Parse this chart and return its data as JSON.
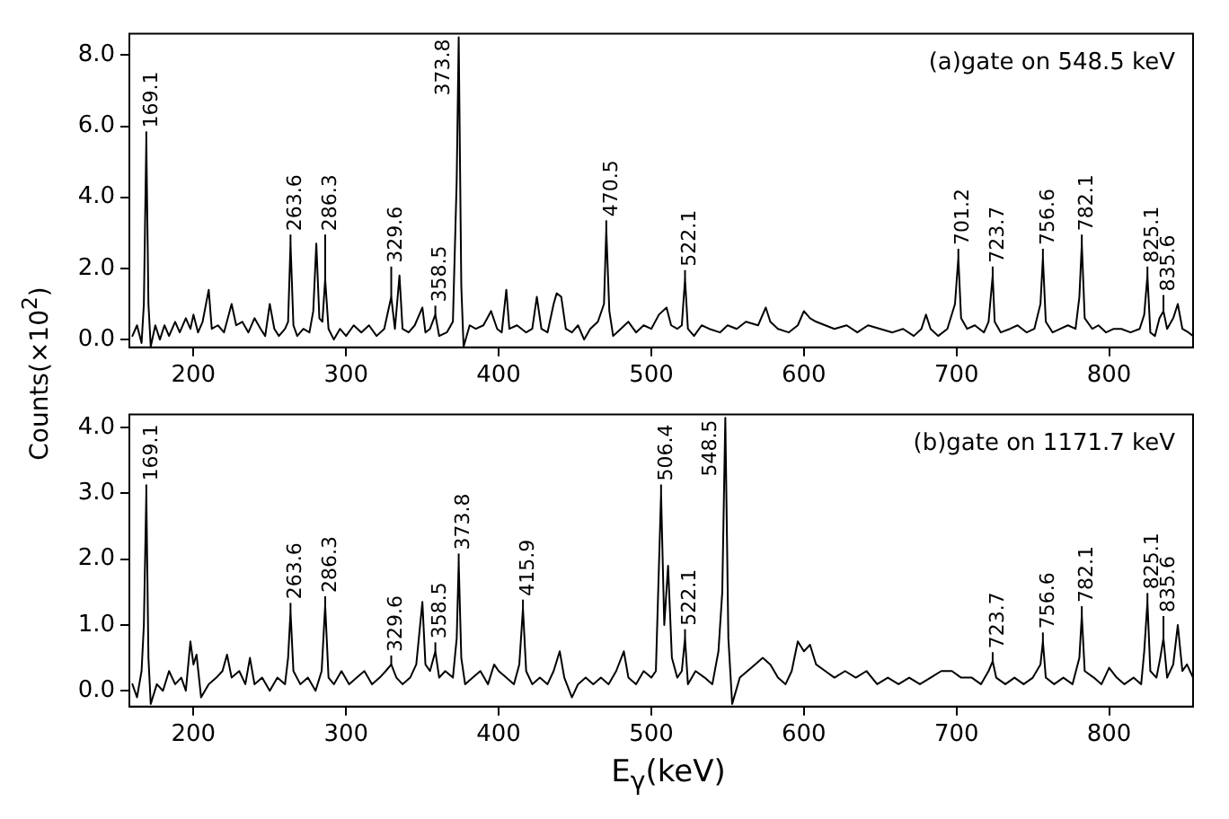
{
  "chart_data": [
    {
      "type": "line",
      "ylabel": "Counts(×10$^{2}$)",
      "xlim": [
        158,
        855
      ],
      "xticks": [
        200,
        300,
        400,
        500,
        600,
        700,
        800
      ],
      "ylim": [
        -0.22,
        8.6
      ],
      "yticks": [
        {
          "value": 0,
          "label": "0.0"
        },
        {
          "value": 2,
          "label": "2.0"
        },
        {
          "value": 4,
          "label": "4.0"
        },
        {
          "value": 6,
          "label": "6.0"
        },
        {
          "value": 8,
          "label": "8.0"
        }
      ],
      "series": [
        {
          "color": "#000000",
          "x": [
            160,
            163,
            166,
            167.5,
            169.1,
            170.5,
            172,
            175,
            178,
            181,
            184,
            188,
            191,
            195,
            198,
            200,
            203,
            206,
            210,
            212,
            216,
            220,
            225,
            228,
            232,
            236,
            240,
            244,
            247,
            250,
            253,
            256,
            260,
            262,
            263.6,
            265.5,
            268,
            272,
            276,
            278.5,
            280.5,
            282.5,
            284.5,
            286.3,
            288.5,
            292,
            296,
            300,
            305,
            310,
            315,
            320,
            325,
            329.6,
            332,
            335,
            337,
            341,
            345,
            350,
            352,
            355,
            358.5,
            361,
            366,
            370,
            372.5,
            373.8,
            375.5,
            377,
            381,
            385,
            390,
            395,
            399,
            402,
            405,
            407,
            412,
            418,
            422,
            425,
            428,
            432,
            436,
            438,
            441,
            444,
            448,
            452,
            456,
            460,
            465,
            469,
            470.5,
            472.5,
            475,
            480,
            485,
            490,
            495,
            500,
            505,
            510,
            513,
            517,
            520,
            522.1,
            524,
            528,
            533,
            538,
            545,
            550,
            556,
            562,
            570,
            575,
            578,
            583,
            590,
            596,
            600,
            604,
            608,
            614,
            620,
            628,
            635,
            642,
            650,
            658,
            665,
            672,
            677,
            680,
            683,
            688,
            694,
            699,
            701.2,
            703,
            707,
            712,
            718,
            721,
            723.7,
            725,
            729,
            735,
            740,
            746,
            751,
            755,
            756.6,
            758.5,
            763,
            768,
            773,
            778,
            780.5,
            782.1,
            784,
            789,
            793,
            798,
            803,
            808,
            814,
            820,
            823,
            825.1,
            827,
            830,
            833,
            835.6,
            838,
            842,
            845,
            848,
            852,
            855
          ],
          "values": [
            0.1,
            0.4,
            -0.1,
            1.0,
            5.6,
            1.0,
            -0.2,
            0.4,
            0.0,
            0.4,
            0.1,
            0.5,
            0.2,
            0.6,
            0.3,
            0.7,
            0.2,
            0.5,
            1.4,
            0.3,
            0.4,
            0.2,
            1.0,
            0.4,
            0.5,
            0.2,
            0.6,
            0.3,
            0.1,
            1.0,
            0.3,
            0.1,
            0.3,
            0.5,
            2.7,
            0.4,
            0.1,
            0.3,
            0.2,
            0.8,
            2.7,
            0.6,
            0.5,
            1.7,
            0.3,
            0.0,
            0.3,
            0.1,
            0.4,
            0.2,
            0.4,
            0.1,
            0.3,
            1.2,
            0.3,
            1.8,
            0.3,
            0.2,
            0.4,
            0.9,
            0.2,
            0.3,
            0.7,
            0.1,
            0.2,
            0.5,
            4.5,
            8.5,
            1.5,
            -0.2,
            0.4,
            0.3,
            0.4,
            0.8,
            0.3,
            0.2,
            1.4,
            0.3,
            0.4,
            0.2,
            0.3,
            1.2,
            0.3,
            0.2,
            1.0,
            1.3,
            1.2,
            0.3,
            0.2,
            0.4,
            0.0,
            0.3,
            0.5,
            1.0,
            3.1,
            0.8,
            0.1,
            0.3,
            0.5,
            0.2,
            0.4,
            0.3,
            0.7,
            0.9,
            0.4,
            0.3,
            0.4,
            1.7,
            0.3,
            0.1,
            0.4,
            0.3,
            0.2,
            0.4,
            0.3,
            0.5,
            0.4,
            0.9,
            0.5,
            0.3,
            0.2,
            0.4,
            0.8,
            0.6,
            0.5,
            0.4,
            0.3,
            0.4,
            0.2,
            0.4,
            0.3,
            0.2,
            0.3,
            0.1,
            0.3,
            0.7,
            0.3,
            0.1,
            0.3,
            1.0,
            2.3,
            0.6,
            0.3,
            0.4,
            0.2,
            0.5,
            1.8,
            0.5,
            0.2,
            0.3,
            0.4,
            0.2,
            0.3,
            1.0,
            2.3,
            0.5,
            0.2,
            0.3,
            0.4,
            0.3,
            1.2,
            2.7,
            0.6,
            0.3,
            0.4,
            0.2,
            0.3,
            0.3,
            0.2,
            0.3,
            0.7,
            1.8,
            0.2,
            0.1,
            0.6,
            0.8,
            0.3,
            0.6,
            1.0,
            0.3,
            0.2,
            0.1
          ]
        }
      ],
      "annotations": [
        "(a)gate on 548.5 keV",
        {
          "text": "169.1",
          "x": 169.1,
          "y": 5.6
        },
        {
          "text": "263.6",
          "x": 263.6,
          "y": 2.7
        },
        {
          "text": "286.3",
          "x": 286.3,
          "y": 1.7
        },
        {
          "text": "329.6",
          "x": 329.6,
          "y": 1.2
        },
        {
          "text": "358.5",
          "x": 358.5,
          "y": 0.7
        },
        {
          "text": "373.8",
          "x": 373.8,
          "y": 8.5
        },
        {
          "text": "470.5",
          "x": 470.5,
          "y": 3.1
        },
        {
          "text": "522.1",
          "x": 522.1,
          "y": 1.7
        },
        {
          "text": "701.2",
          "x": 701.2,
          "y": 2.3
        },
        {
          "text": "723.7",
          "x": 723.7,
          "y": 1.8
        },
        {
          "text": "756.6",
          "x": 756.6,
          "y": 2.3
        },
        {
          "text": "782.1",
          "x": 782.1,
          "y": 2.7
        },
        {
          "text": "825.1",
          "x": 825.1,
          "y": 1.8
        },
        {
          "text": "835.6",
          "x": 835.6,
          "y": 0.8
        }
      ]
    },
    {
      "type": "line",
      "xlabel": "E$_{γ}$(keV)",
      "xlim": [
        158,
        855
      ],
      "xticks": [
        200,
        300,
        400,
        500,
        600,
        700,
        800
      ],
      "ylim": [
        -0.24,
        4.2
      ],
      "yticks": [
        {
          "value": 0,
          "label": "0.0"
        },
        {
          "value": 1,
          "label": "1.0"
        },
        {
          "value": 2,
          "label": "2.0"
        },
        {
          "value": 3,
          "label": "3.0"
        },
        {
          "value": 4,
          "label": "4.0"
        }
      ],
      "series": [
        {
          "color": "#000000",
          "x": [
            160,
            163,
            166,
            167.5,
            169.1,
            170.5,
            172,
            176,
            180,
            184,
            188,
            192,
            195,
            198,
            200,
            202,
            205,
            210,
            215,
            219,
            222,
            225,
            230,
            234,
            237,
            240,
            245,
            250,
            255,
            260,
            262,
            263.6,
            265.5,
            270,
            275,
            280,
            284,
            286.3,
            288.5,
            292,
            297,
            302,
            307,
            312,
            317,
            322,
            326,
            329.6,
            333,
            337,
            342,
            346,
            350,
            352,
            355,
            358.5,
            361,
            365,
            370,
            372.5,
            373.8,
            375.5,
            378,
            383,
            388,
            393,
            397,
            400,
            405,
            410,
            413.5,
            415.9,
            418,
            422,
            427,
            432,
            436,
            440,
            443,
            448,
            452,
            457,
            462,
            467,
            472,
            477,
            482,
            485,
            490,
            495,
            500,
            503,
            506.4,
            508.5,
            511,
            513.5,
            517,
            520,
            522.1,
            524,
            529,
            535,
            540,
            544,
            546.5,
            548.5,
            550.5,
            553,
            558,
            563,
            568,
            573,
            578,
            583,
            588,
            592,
            596,
            600,
            604,
            608,
            614,
            620,
            627,
            634,
            641,
            648,
            655,
            662,
            669,
            676,
            683,
            690,
            697,
            703,
            710,
            716,
            721,
            723.7,
            726,
            732,
            738,
            744,
            750,
            755,
            756.6,
            758.5,
            764,
            770,
            776,
            780.5,
            782.1,
            784,
            790,
            795,
            800,
            805,
            810,
            816,
            821,
            823,
            825.1,
            827,
            831,
            833.5,
            835.6,
            838,
            842,
            845,
            848,
            851,
            855
          ],
          "values": [
            0.1,
            -0.1,
            0.3,
            1.0,
            3.0,
            0.5,
            -0.2,
            0.1,
            0.0,
            0.3,
            0.1,
            0.2,
            0.0,
            0.75,
            0.4,
            0.55,
            -0.1,
            0.1,
            0.2,
            0.3,
            0.55,
            0.2,
            0.3,
            0.1,
            0.5,
            0.1,
            0.2,
            0.0,
            0.2,
            0.1,
            0.5,
            1.2,
            0.3,
            0.1,
            0.2,
            0.0,
            0.3,
            1.3,
            0.2,
            0.1,
            0.3,
            0.1,
            0.2,
            0.3,
            0.1,
            0.2,
            0.3,
            0.4,
            0.2,
            0.1,
            0.2,
            0.4,
            1.35,
            0.4,
            0.3,
            0.6,
            0.2,
            0.3,
            0.2,
            0.8,
            1.95,
            0.5,
            0.1,
            0.2,
            0.3,
            0.1,
            0.4,
            0.3,
            0.2,
            0.1,
            0.4,
            1.25,
            0.3,
            0.1,
            0.2,
            0.1,
            0.3,
            0.6,
            0.2,
            -0.1,
            0.1,
            0.2,
            0.1,
            0.2,
            0.1,
            0.3,
            0.6,
            0.2,
            0.1,
            0.3,
            0.2,
            0.3,
            3.0,
            1.0,
            1.9,
            0.5,
            0.2,
            0.3,
            0.8,
            0.1,
            0.3,
            0.2,
            0.1,
            0.6,
            1.5,
            4.15,
            0.8,
            -0.2,
            0.2,
            0.3,
            0.4,
            0.5,
            0.4,
            0.2,
            0.1,
            0.3,
            0.75,
            0.6,
            0.7,
            0.4,
            0.3,
            0.2,
            0.3,
            0.2,
            0.3,
            0.1,
            0.2,
            0.1,
            0.2,
            0.1,
            0.2,
            0.3,
            0.3,
            0.2,
            0.2,
            0.1,
            0.3,
            0.45,
            0.2,
            0.1,
            0.2,
            0.1,
            0.2,
            0.4,
            0.75,
            0.2,
            0.1,
            0.2,
            0.1,
            0.5,
            1.15,
            0.3,
            0.2,
            0.1,
            0.35,
            0.2,
            0.1,
            0.2,
            0.1,
            0.6,
            1.35,
            0.3,
            0.2,
            0.5,
            0.8,
            0.2,
            0.4,
            1.0,
            0.3,
            0.4,
            0.2
          ]
        }
      ],
      "annotations": [
        "(b)gate on 1171.7 keV",
        {
          "text": "169.1",
          "x": 169.1,
          "y": 3.0
        },
        {
          "text": "263.6",
          "x": 263.6,
          "y": 1.2
        },
        {
          "text": "286.3",
          "x": 286.3,
          "y": 1.3
        },
        {
          "text": "329.6",
          "x": 329.6,
          "y": 0.4
        },
        {
          "text": "358.5",
          "x": 358.5,
          "y": 0.6
        },
        {
          "text": "373.8",
          "x": 373.8,
          "y": 1.95
        },
        {
          "text": "415.9",
          "x": 415.9,
          "y": 1.25
        },
        {
          "text": "506.4",
          "x": 506.4,
          "y": 3.0
        },
        {
          "text": "522.1",
          "x": 522.1,
          "y": 0.8
        },
        {
          "text": "548.5",
          "x": 548.5,
          "y": 4.15
        },
        {
          "text": "723.7",
          "x": 723.7,
          "y": 0.45
        },
        {
          "text": "756.6",
          "x": 756.6,
          "y": 0.75
        },
        {
          "text": "782.1",
          "x": 782.1,
          "y": 1.15
        },
        {
          "text": "825.1",
          "x": 825.1,
          "y": 1.35
        },
        {
          "text": "835.6",
          "x": 835.6,
          "y": 0.8
        }
      ]
    }
  ]
}
